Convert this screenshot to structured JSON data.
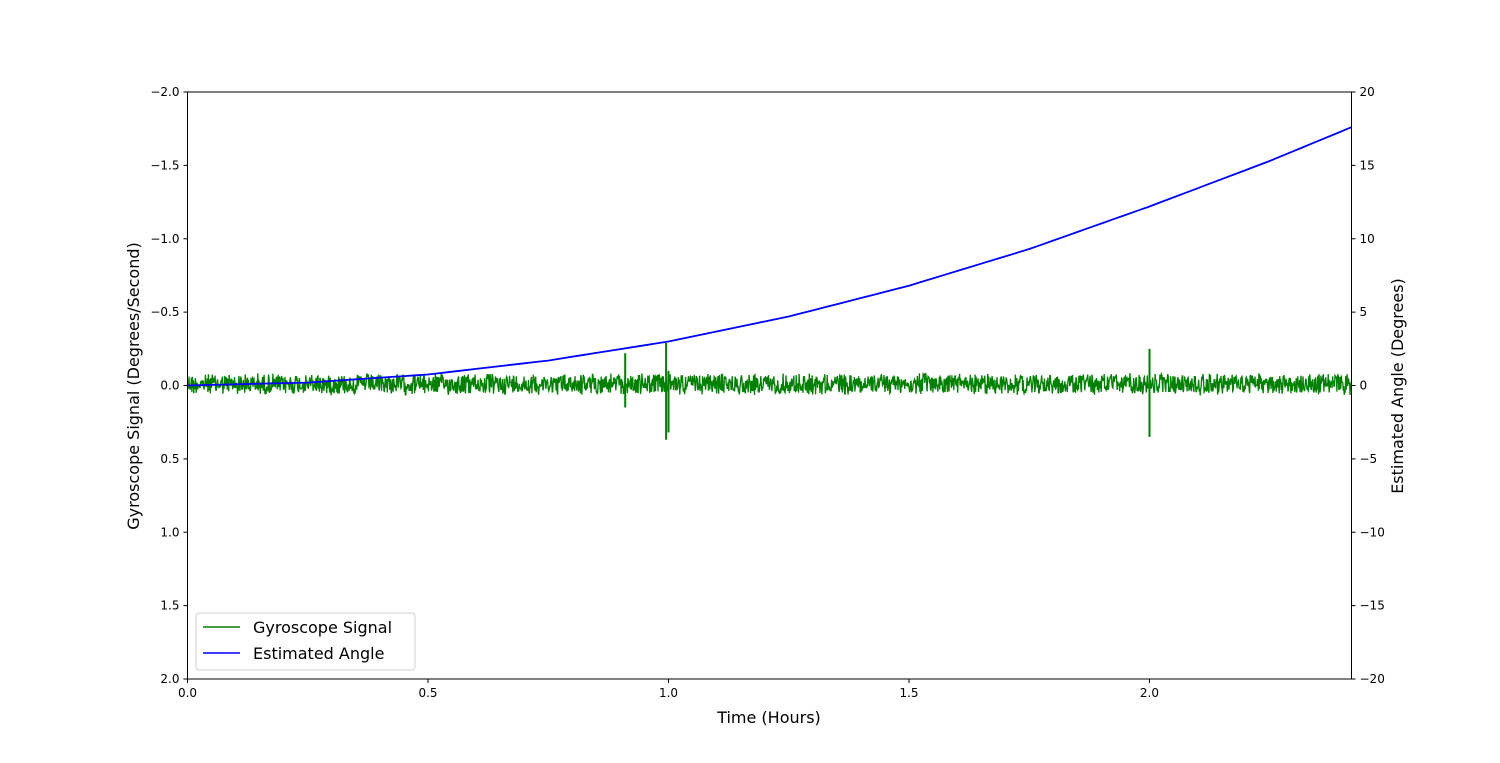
{
  "chart_data": {
    "type": "line",
    "title": "",
    "xlabel": "Time (Hours)",
    "ylabel": "Gyroscope Signal (Degrees/Second)",
    "ylabel_right": "Estimated Angle (Degrees)",
    "xlim": [
      0.0,
      2.42
    ],
    "ylim": [
      2.0,
      -2.0
    ],
    "ylim_right": [
      -20,
      20
    ],
    "x_ticks": [
      "0.0",
      "0.5",
      "1.0",
      "1.5",
      "2.0"
    ],
    "y_ticks_left": [
      "−2.0",
      "−1.5",
      "−1.0",
      "−0.5",
      "0.0",
      "0.5",
      "1.0",
      "1.5",
      "2.0"
    ],
    "y_ticks_right": [
      "20",
      "15",
      "10",
      "5",
      "0",
      "−5",
      "−10",
      "−15",
      "−20"
    ],
    "grid": false,
    "legend_position": "lower left",
    "series": [
      {
        "name": "Gyroscope Signal",
        "color": "#008000",
        "axis": "left",
        "description": "Noisy signal centered near 0 with amplitude about ±0.08; spikes near t=0.92 (−0.22), t=1.0 (−0.29 / +0.37), t=2.0 (−0.25 / +0.35)",
        "noise_amplitude": 0.08,
        "spikes": [
          {
            "x": 0.91,
            "low": -0.22,
            "high": 0.15
          },
          {
            "x": 0.995,
            "low": -0.29,
            "high": 0.37
          },
          {
            "x": 1.0,
            "low": -0.1,
            "high": 0.32
          },
          {
            "x": 2.0,
            "low": -0.25,
            "high": 0.35
          }
        ]
      },
      {
        "name": "Estimated Angle",
        "color": "#0000ff",
        "axis": "right",
        "x": [
          0.0,
          0.25,
          0.5,
          0.75,
          1.0,
          1.25,
          1.5,
          1.75,
          2.0,
          2.25,
          2.42
        ],
        "values": [
          0.0,
          0.2,
          0.75,
          1.7,
          3.0,
          4.7,
          6.8,
          9.3,
          12.2,
          15.3,
          17.6
        ]
      }
    ]
  },
  "legend": {
    "items": [
      {
        "label": "Gyroscope Signal",
        "color": "#008000"
      },
      {
        "label": "Estimated Angle",
        "color": "#0000ff"
      }
    ]
  }
}
